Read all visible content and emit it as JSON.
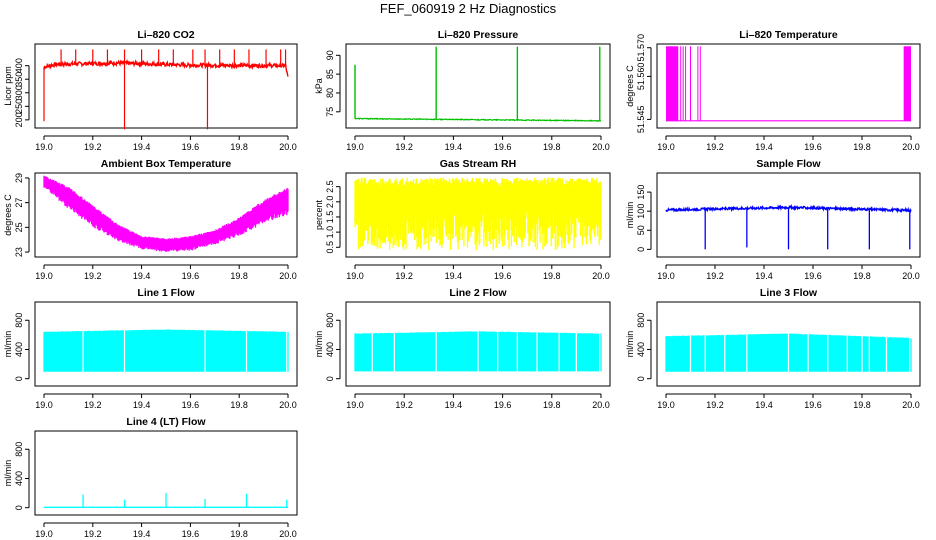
{
  "figure_title": "FEF_060919  2 Hz Diagnostics",
  "chart_data": [
    {
      "type": "line",
      "title": "Li–820 CO2",
      "ylabel": "Licor ppm",
      "color": "#ff0000",
      "xlim": [
        19.0,
        20.0
      ],
      "ylim": [
        170,
        480
      ],
      "x_ticks": [
        "19.0",
        "19.2",
        "19.4",
        "19.6",
        "19.8",
        "20.0"
      ],
      "y_ticks": [
        "200",
        "250",
        "300",
        "350",
        "400"
      ],
      "y_tick_values": [
        200,
        250,
        300,
        350,
        400
      ],
      "pattern": "co2",
      "baseline": [
        [
          19.0,
          395
        ],
        [
          19.05,
          405
        ],
        [
          19.3,
          410
        ],
        [
          19.6,
          402
        ],
        [
          19.99,
          400
        ],
        [
          20.0,
          355
        ]
      ],
      "spikes_up": [
        19.07,
        19.13,
        19.2,
        19.26,
        19.33,
        19.4,
        19.47,
        19.53,
        19.61,
        19.66,
        19.72,
        19.78,
        19.84,
        19.91,
        19.97,
        19.99
      ],
      "spike_up_value": 460,
      "spikes_down": [
        [
          19.0,
          195
        ],
        [
          19.33,
          165
        ],
        [
          19.67,
          165
        ]
      ]
    },
    {
      "type": "line",
      "title": "Li–820 Pressure",
      "ylabel": "kPa",
      "color": "#00c000",
      "xlim": [
        19.0,
        20.0
      ],
      "ylim": [
        70.7,
        93
      ],
      "x_ticks": [
        "19.0",
        "19.2",
        "19.4",
        "19.6",
        "19.8",
        "20.0"
      ],
      "y_ticks": [
        "75",
        "80",
        "85",
        "90"
      ],
      "y_tick_values": [
        75,
        80,
        85,
        90
      ],
      "pattern": "pressure",
      "baseline": [
        [
          19.0,
          73.2
        ],
        [
          20.0,
          72.6
        ]
      ],
      "spikes": [
        [
          19.0,
          87.5
        ],
        [
          19.33,
          92.3
        ],
        [
          19.66,
          92.3
        ],
        [
          19.995,
          92.3
        ]
      ]
    },
    {
      "type": "line",
      "title": "Li–820 Temperature",
      "ylabel": "degrees C",
      "color": "#ff00ff",
      "xlim": [
        19.0,
        20.0
      ],
      "ylim": [
        51.542,
        51.5713
      ],
      "x_ticks": [
        "19.0",
        "19.2",
        "19.4",
        "19.6",
        "19.8",
        "20.0"
      ],
      "y_ticks": [
        "51.545",
        "51.560",
        "51.570"
      ],
      "y_tick_values": [
        51.545,
        51.56,
        51.57
      ],
      "pattern": "temperature",
      "low": 51.5445,
      "high": 51.5705,
      "dense_ranges": [
        [
          19.0,
          19.05
        ],
        [
          19.97,
          20.0
        ]
      ],
      "sparse_spikes": [
        19.06,
        19.07,
        19.08,
        19.1,
        19.13,
        19.14
      ]
    },
    {
      "type": "line",
      "title": "Ambient Box Temperature",
      "ylabel": "degrees C",
      "color": "#ff00ff",
      "xlim": [
        19.0,
        20.0
      ],
      "ylim": [
        22.6,
        29.4
      ],
      "x_ticks": [
        "19.0",
        "19.2",
        "19.4",
        "19.6",
        "19.8",
        "20.0"
      ],
      "y_ticks": [
        "23",
        "25",
        "27",
        "29"
      ],
      "y_tick_values": [
        23,
        25,
        27,
        29
      ],
      "pattern": "band",
      "upper": [
        [
          19.0,
          29.2
        ],
        [
          19.1,
          28.3
        ],
        [
          19.2,
          26.8
        ],
        [
          19.3,
          25.3
        ],
        [
          19.4,
          24.3
        ],
        [
          19.5,
          24.1
        ],
        [
          19.6,
          24.3
        ],
        [
          19.7,
          24.8
        ],
        [
          19.8,
          25.8
        ],
        [
          19.9,
          27.2
        ],
        [
          20.0,
          28.3
        ]
      ],
      "lower": [
        [
          19.0,
          28.2
        ],
        [
          19.1,
          26.5
        ],
        [
          19.2,
          25.0
        ],
        [
          19.3,
          23.9
        ],
        [
          19.4,
          23.2
        ],
        [
          19.5,
          23.0
        ],
        [
          19.6,
          23.1
        ],
        [
          19.7,
          23.6
        ],
        [
          19.8,
          24.3
        ],
        [
          19.9,
          25.3
        ],
        [
          20.0,
          26.0
        ]
      ]
    },
    {
      "type": "line",
      "title": "Gas Stream RH",
      "ylabel": "percent",
      "color": "#ffff00",
      "xlim": [
        19.0,
        20.0
      ],
      "ylim": [
        0.18,
        2.95
      ],
      "x_ticks": [
        "19.0",
        "19.2",
        "19.4",
        "19.6",
        "19.8",
        "20.0"
      ],
      "y_ticks": [
        "0.5",
        "1.0",
        "1.5",
        "2.0",
        "2.5"
      ],
      "y_tick_values": [
        0.5,
        1.0,
        1.5,
        2.0,
        2.5
      ],
      "pattern": "band",
      "upper": [
        [
          19.0,
          2.8
        ],
        [
          20.0,
          2.8
        ]
      ],
      "lower": [
        [
          19.0,
          0.4
        ],
        [
          20.0,
          0.4
        ]
      ]
    },
    {
      "type": "line",
      "title": "Sample Flow",
      "ylabel": "ml/min",
      "color": "#0000ff",
      "xlim": [
        19.0,
        20.0
      ],
      "ylim": [
        -20,
        200
      ],
      "x_ticks": [
        "19.0",
        "19.2",
        "19.4",
        "19.6",
        "19.8",
        "20.0"
      ],
      "y_ticks": [
        "0",
        "50",
        "100",
        "150"
      ],
      "y_tick_values": [
        0,
        50,
        100,
        150
      ],
      "pattern": "sample",
      "baseline": [
        [
          19.0,
          103
        ],
        [
          19.5,
          110
        ],
        [
          20.0,
          102
        ]
      ],
      "drops": [
        [
          19.16,
          0
        ],
        [
          19.33,
          5
        ],
        [
          19.5,
          0
        ],
        [
          19.66,
          0
        ],
        [
          19.83,
          0
        ],
        [
          19.995,
          0
        ]
      ]
    },
    {
      "type": "line",
      "title": "Line 1 Flow",
      "ylabel": "ml/min",
      "color": "#00ffff",
      "xlim": [
        19.0,
        20.0
      ],
      "ylim": [
        -100,
        1050
      ],
      "x_ticks": [
        "19.0",
        "19.2",
        "19.4",
        "19.6",
        "19.8",
        "20.0"
      ],
      "y_ticks": [
        "0",
        "400",
        "800"
      ],
      "y_tick_values": [
        0,
        400,
        800
      ],
      "pattern": "block",
      "upper": [
        [
          19.0,
          645
        ],
        [
          19.5,
          675
        ],
        [
          20.0,
          645
        ]
      ],
      "lower": [
        [
          19.0,
          95
        ],
        [
          20.0,
          95
        ]
      ],
      "gaps": [
        19.16,
        19.33,
        19.66,
        19.83,
        19.995
      ]
    },
    {
      "type": "line",
      "title": "Line 2 Flow",
      "ylabel": "ml/min",
      "color": "#00ffff",
      "xlim": [
        19.0,
        20.0
      ],
      "ylim": [
        -100,
        1050
      ],
      "x_ticks": [
        "19.0",
        "19.2",
        "19.4",
        "19.6",
        "19.8",
        "20.0"
      ],
      "y_ticks": [
        "0",
        "400",
        "800"
      ],
      "y_tick_values": [
        0,
        400,
        800
      ],
      "pattern": "block",
      "upper": [
        [
          19.0,
          620
        ],
        [
          19.5,
          650
        ],
        [
          20.0,
          620
        ]
      ],
      "lower": [
        [
          19.0,
          100
        ],
        [
          20.0,
          100
        ]
      ],
      "gaps": [
        19.07,
        19.16,
        19.33,
        19.5,
        19.58,
        19.66,
        19.74,
        19.83,
        19.9,
        19.995
      ]
    },
    {
      "type": "line",
      "title": "Line 3 Flow",
      "ylabel": "ml/min",
      "color": "#00ffff",
      "xlim": [
        19.0,
        20.0
      ],
      "ylim": [
        -100,
        1050
      ],
      "x_ticks": [
        "19.0",
        "19.2",
        "19.4",
        "19.6",
        "19.8",
        "20.0"
      ],
      "y_ticks": [
        "0",
        "400",
        "800"
      ],
      "y_tick_values": [
        0,
        400,
        800
      ],
      "pattern": "block",
      "upper": [
        [
          19.0,
          585
        ],
        [
          19.5,
          620
        ],
        [
          20.0,
          560
        ]
      ],
      "lower": [
        [
          19.0,
          95
        ],
        [
          20.0,
          95
        ]
      ],
      "gaps": [
        19.1,
        19.16,
        19.24,
        19.33,
        19.5,
        19.58,
        19.66,
        19.74,
        19.8,
        19.83,
        19.9,
        19.995
      ]
    },
    {
      "type": "line",
      "title": "Line 4 (LT) Flow",
      "ylabel": "ml/min",
      "color": "#00ffff",
      "xlim": [
        19.0,
        20.0
      ],
      "ylim": [
        -100,
        1050
      ],
      "x_ticks": [
        "19.0",
        "19.2",
        "19.4",
        "19.6",
        "19.8",
        "20.0"
      ],
      "y_ticks": [
        "0",
        "400",
        "800"
      ],
      "y_tick_values": [
        0,
        400,
        800
      ],
      "pattern": "spikes",
      "baseline": [
        [
          19.0,
          5
        ],
        [
          20.0,
          5
        ]
      ],
      "spikes": [
        [
          19.16,
          180
        ],
        [
          19.33,
          110
        ],
        [
          19.5,
          200
        ],
        [
          19.66,
          120
        ],
        [
          19.83,
          190
        ],
        [
          19.995,
          110
        ]
      ]
    }
  ]
}
